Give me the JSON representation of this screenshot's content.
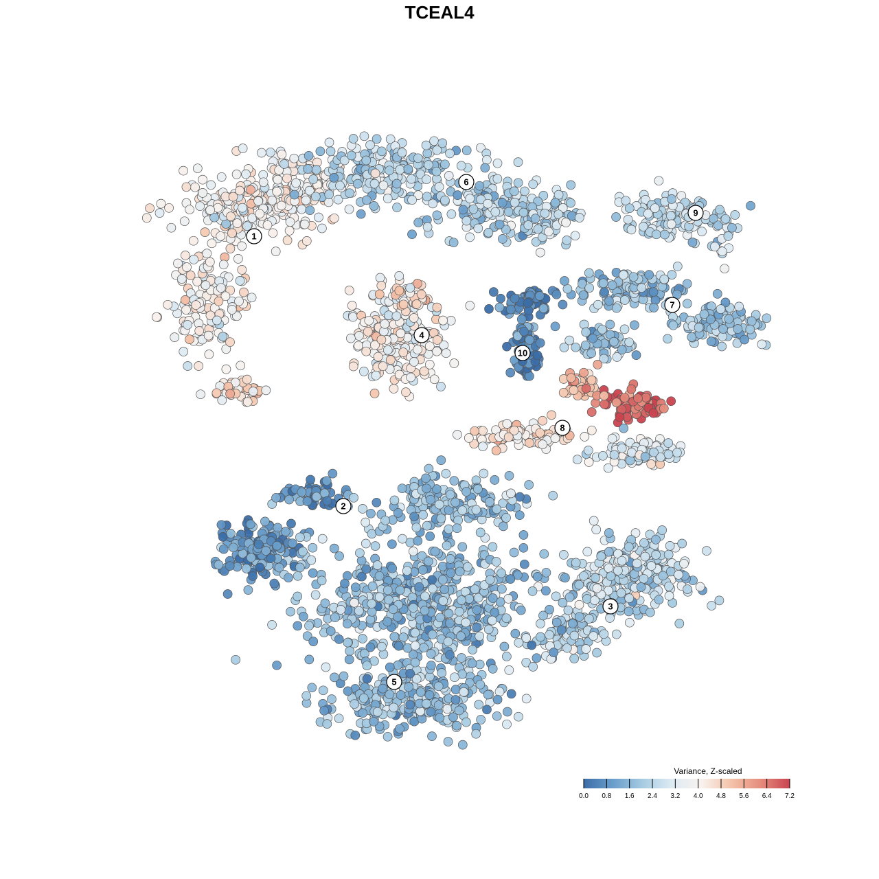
{
  "chart_data": {
    "type": "scatter",
    "title": "TCEAL4",
    "xlabel": "",
    "ylabel": "",
    "color_scale": {
      "title": "Variance, Z-scaled",
      "min": 0.0,
      "max": 7.2,
      "ticks": [
        "0.0",
        "0.8",
        "1.6",
        "2.4",
        "3.2",
        "4.0",
        "4.8",
        "5.6",
        "6.4",
        "7.2"
      ],
      "palette": [
        "#3b6ea8",
        "#6a9ecb",
        "#a6cbe2",
        "#deebf3",
        "#f8f2ef",
        "#f4c3a9",
        "#e58d7d",
        "#c9434f"
      ]
    },
    "clusters": [
      {
        "label": "1",
        "mean_value": 3.9
      },
      {
        "label": "2",
        "mean_value": 0.9
      },
      {
        "label": "3",
        "mean_value": 2.4
      },
      {
        "label": "4",
        "mean_value": 3.9
      },
      {
        "label": "5",
        "mean_value": 1.8
      },
      {
        "label": "6",
        "mean_value": 2.4
      },
      {
        "label": "7",
        "mean_value": 1.9
      },
      {
        "label": "8",
        "mean_value": 5.0
      },
      {
        "label": "9",
        "mean_value": 2.6
      },
      {
        "label": "10",
        "mean_value": 0.4
      }
    ],
    "grid": false,
    "legend_position": "bottom-right"
  }
}
